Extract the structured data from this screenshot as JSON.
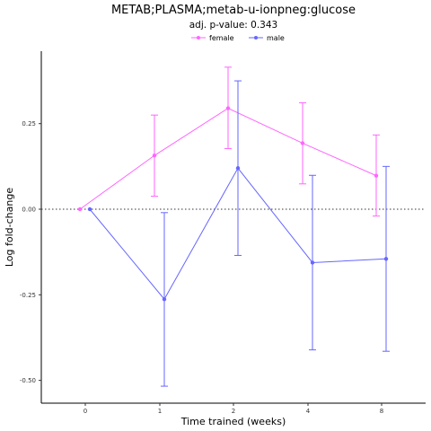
{
  "chart_data": {
    "type": "line",
    "title": "METAB;PLASMA;metab-u-ionpneg:glucose",
    "subtitle": "adj. p-value: 0.343",
    "xlabel": "Time trained (weeks)",
    "ylabel": "Log fold-change",
    "categories": [
      "0",
      "1",
      "2",
      "4",
      "8"
    ],
    "y_ticks": [
      0.25,
      0.0,
      -0.25,
      -0.5
    ],
    "y_tick_labels": [
      "0.25",
      "0.00",
      "-0.25",
      "-0.50"
    ],
    "ylim": [
      -0.55,
      0.46
    ],
    "reference_line": 0,
    "grid": false,
    "legend_position": "top",
    "series": [
      {
        "name": "female",
        "color": "#ff66ff",
        "values": [
          0.0,
          0.157,
          0.295,
          0.193,
          0.098
        ],
        "error_low": [
          0.0,
          0.038,
          0.177,
          0.074,
          -0.02
        ],
        "error_high": [
          0.0,
          0.275,
          0.415,
          0.311,
          0.217
        ]
      },
      {
        "name": "male",
        "color": "#6666ff",
        "values": [
          0.0,
          -0.263,
          0.12,
          -0.156,
          -0.145
        ],
        "error_low": [
          0.0,
          -0.517,
          -0.135,
          -0.411,
          -0.415
        ],
        "error_high": [
          0.0,
          -0.01,
          0.375,
          0.099,
          0.125
        ]
      }
    ]
  }
}
